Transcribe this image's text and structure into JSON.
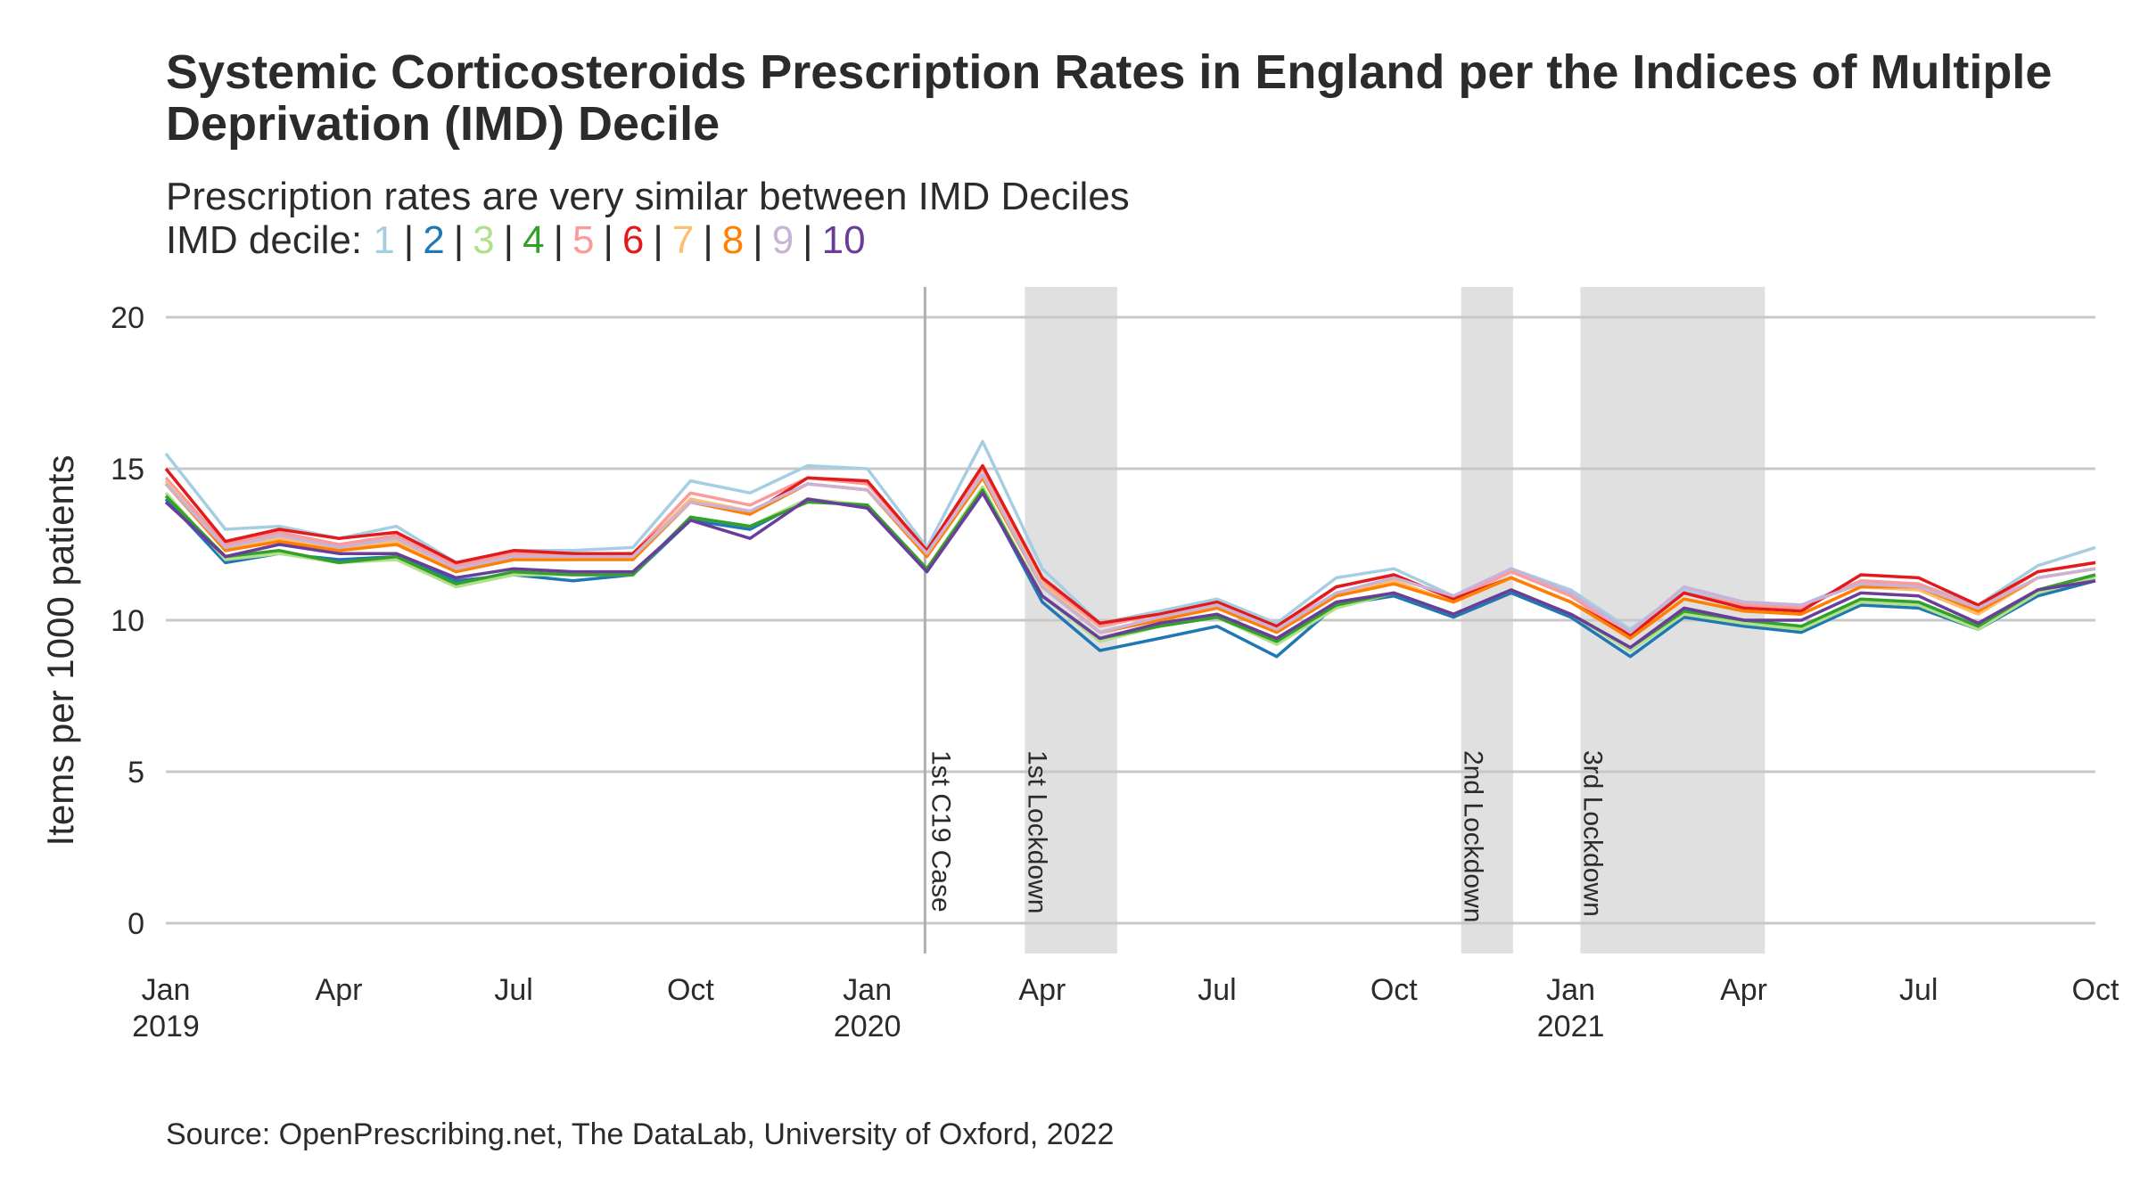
{
  "chart_data": {
    "type": "line",
    "title": "Systemic Corticosteroids Prescription Rates in England per the Indices of Multiple Deprivation (IMD) Decile",
    "subtitle": "Prescription rates are very similar between IMD Deciles",
    "legend_prefix": "IMD decile:",
    "legend_placement": "top-left (inline in subtitle)",
    "ylabel": "Items per 1000 patients",
    "xlabel": "",
    "ylim": [
      -1,
      21
    ],
    "yticks": [
      0,
      5,
      10,
      15,
      20
    ],
    "grid": "horizontal major gridlines",
    "x_range": [
      "2019-01",
      "2021-10"
    ],
    "x_ticks": [
      {
        "date": "2019-01",
        "label": "Jan",
        "sublabel": "2019"
      },
      {
        "date": "2019-04",
        "label": "Apr",
        "sublabel": ""
      },
      {
        "date": "2019-07",
        "label": "Jul",
        "sublabel": ""
      },
      {
        "date": "2019-10",
        "label": "Oct",
        "sublabel": ""
      },
      {
        "date": "2020-01",
        "label": "Jan",
        "sublabel": "2020"
      },
      {
        "date": "2020-04",
        "label": "Apr",
        "sublabel": ""
      },
      {
        "date": "2020-07",
        "label": "Jul",
        "sublabel": ""
      },
      {
        "date": "2020-10",
        "label": "Oct",
        "sublabel": ""
      },
      {
        "date": "2021-01",
        "label": "Jan",
        "sublabel": "2021"
      },
      {
        "date": "2021-04",
        "label": "Apr",
        "sublabel": ""
      },
      {
        "date": "2021-07",
        "label": "Jul",
        "sublabel": ""
      },
      {
        "date": "2021-10",
        "label": "Oct",
        "sublabel": ""
      }
    ],
    "annotations": {
      "vlines": [
        {
          "date": "2020-01-31",
          "label": "1st C19 Case"
        }
      ],
      "shaded_periods": [
        {
          "start": "2020-03-23",
          "end": "2020-05-10",
          "label": "1st Lockdown"
        },
        {
          "start": "2020-11-05",
          "end": "2020-12-02",
          "label": "2nd Lockdown"
        },
        {
          "start": "2021-01-06",
          "end": "2021-04-12",
          "label": "3rd Lockdown"
        }
      ]
    },
    "x": [
      "2019-01",
      "2019-02",
      "2019-03",
      "2019-04",
      "2019-05",
      "2019-06",
      "2019-07",
      "2019-08",
      "2019-09",
      "2019-10",
      "2019-11",
      "2019-12",
      "2020-01",
      "2020-02",
      "2020-03",
      "2020-04",
      "2020-05",
      "2020-06",
      "2020-07",
      "2020-08",
      "2020-09",
      "2020-10",
      "2020-11",
      "2020-12",
      "2021-01",
      "2021-02",
      "2021-03",
      "2021-04",
      "2021-05",
      "2021-06",
      "2021-07",
      "2021-08",
      "2021-09",
      "2021-10"
    ],
    "series": [
      {
        "name": "1",
        "color": "#a6cee3",
        "values": [
          15.5,
          13.0,
          13.1,
          12.7,
          13.1,
          11.9,
          12.3,
          12.3,
          12.4,
          14.6,
          14.2,
          15.1,
          15.0,
          12.4,
          15.9,
          11.7,
          9.9,
          10.3,
          10.7,
          9.9,
          11.4,
          11.7,
          10.8,
          11.7,
          11.0,
          9.7,
          11.0,
          10.6,
          10.5,
          11.3,
          11.2,
          10.5,
          11.8,
          12.4
        ]
      },
      {
        "name": "2",
        "color": "#1f78b4",
        "values": [
          14.0,
          11.9,
          12.2,
          12.0,
          12.1,
          11.3,
          11.5,
          11.3,
          11.5,
          13.3,
          13.0,
          14.0,
          13.7,
          11.6,
          14.3,
          10.6,
          9.0,
          9.4,
          9.8,
          8.8,
          10.5,
          10.8,
          10.1,
          10.9,
          10.1,
          8.8,
          10.1,
          9.8,
          9.6,
          10.5,
          10.4,
          9.7,
          10.8,
          11.3
        ]
      },
      {
        "name": "3",
        "color": "#b2df8a",
        "values": [
          14.2,
          12.0,
          12.2,
          11.9,
          12.0,
          11.1,
          11.5,
          11.5,
          11.5,
          13.4,
          13.1,
          14.0,
          13.8,
          11.7,
          14.4,
          10.8,
          9.3,
          9.8,
          10.1,
          9.2,
          10.4,
          10.9,
          10.2,
          11.0,
          10.2,
          9.0,
          10.2,
          9.9,
          9.7,
          10.6,
          10.5,
          9.7,
          10.9,
          11.4
        ]
      },
      {
        "name": "4",
        "color": "#33a02c",
        "values": [
          14.1,
          12.1,
          12.3,
          11.9,
          12.1,
          11.2,
          11.6,
          11.5,
          11.5,
          13.4,
          13.1,
          13.9,
          13.8,
          11.7,
          14.3,
          10.8,
          9.4,
          9.8,
          10.1,
          9.3,
          10.5,
          10.9,
          10.2,
          11.0,
          10.2,
          9.1,
          10.3,
          10.0,
          9.8,
          10.7,
          10.6,
          9.8,
          11.0,
          11.5
        ]
      },
      {
        "name": "5",
        "color": "#fb9a99",
        "values": [
          14.7,
          12.5,
          12.9,
          12.5,
          12.8,
          11.8,
          12.2,
          12.2,
          12.2,
          14.2,
          13.8,
          14.7,
          14.5,
          12.3,
          15.0,
          11.3,
          9.8,
          10.2,
          10.5,
          9.7,
          11.1,
          11.5,
          10.7,
          11.6,
          10.8,
          9.5,
          10.9,
          10.5,
          10.4,
          11.3,
          11.2,
          10.4,
          11.6,
          11.9
        ]
      },
      {
        "name": "6",
        "color": "#e31a1c",
        "values": [
          15.0,
          12.6,
          13.0,
          12.7,
          12.9,
          11.9,
          12.3,
          12.2,
          12.2,
          13.9,
          13.5,
          14.7,
          14.6,
          12.3,
          15.1,
          11.4,
          9.9,
          10.2,
          10.6,
          9.8,
          11.1,
          11.5,
          10.7,
          11.4,
          10.6,
          9.5,
          10.9,
          10.4,
          10.3,
          11.5,
          11.4,
          10.5,
          11.6,
          11.9
        ]
      },
      {
        "name": "7",
        "color": "#fdbf6f",
        "values": [
          14.6,
          12.3,
          12.7,
          12.3,
          12.6,
          11.6,
          12.0,
          12.0,
          12.1,
          14.0,
          13.6,
          14.5,
          14.3,
          12.2,
          14.8,
          11.2,
          9.6,
          10.1,
          10.5,
          9.6,
          10.9,
          11.3,
          10.6,
          11.4,
          10.6,
          9.4,
          10.7,
          10.3,
          10.2,
          11.1,
          11.0,
          10.2,
          11.4,
          11.7
        ]
      },
      {
        "name": "8",
        "color": "#ff7f00",
        "values": [
          14.5,
          12.3,
          12.6,
          12.3,
          12.5,
          11.6,
          12.0,
          12.0,
          12.0,
          13.9,
          13.5,
          14.5,
          14.3,
          12.1,
          14.7,
          11.1,
          9.6,
          10.0,
          10.4,
          9.6,
          10.8,
          11.2,
          10.6,
          11.4,
          10.6,
          9.4,
          10.7,
          10.3,
          10.2,
          11.1,
          11.1,
          10.3,
          11.4,
          11.7
        ]
      },
      {
        "name": "9",
        "color": "#cab2d6",
        "values": [
          14.5,
          12.4,
          12.8,
          12.4,
          12.7,
          11.7,
          12.1,
          12.1,
          12.1,
          13.9,
          13.6,
          14.5,
          14.3,
          12.2,
          14.8,
          11.1,
          9.6,
          10.1,
          10.5,
          9.7,
          10.9,
          11.4,
          10.8,
          11.7,
          10.9,
          9.6,
          11.1,
          10.6,
          10.5,
          11.2,
          11.1,
          10.4,
          11.4,
          11.7
        ]
      },
      {
        "name": "10",
        "color": "#6a3d9a",
        "values": [
          13.9,
          12.1,
          12.5,
          12.2,
          12.2,
          11.4,
          11.7,
          11.6,
          11.6,
          13.3,
          12.7,
          14.0,
          13.7,
          11.6,
          14.2,
          10.8,
          9.4,
          9.9,
          10.2,
          9.4,
          10.6,
          10.9,
          10.2,
          11.0,
          10.2,
          9.1,
          10.4,
          10.0,
          10.0,
          10.9,
          10.8,
          9.9,
          11.0,
          11.3
        ]
      }
    ]
  },
  "caption": "Source: OpenPrescribing.net, The DataLab, University of Oxford, 2022"
}
